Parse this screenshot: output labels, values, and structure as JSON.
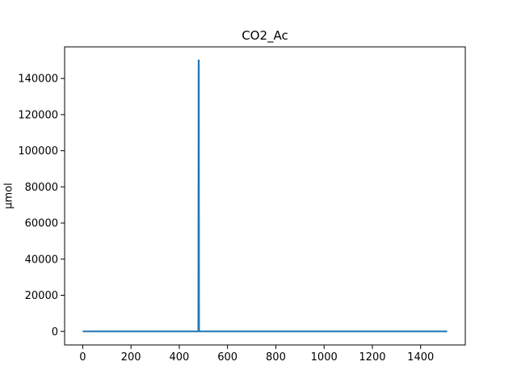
{
  "chart_data": {
    "type": "line",
    "title": "CO2_Ac",
    "xlabel": "",
    "ylabel": "µmol",
    "xlim": [
      -75,
      1585
    ],
    "ylim": [
      -7500,
      157500
    ],
    "x_ticks": [
      0,
      200,
      400,
      600,
      800,
      1000,
      1200,
      1400
    ],
    "y_ticks": [
      0,
      20000,
      40000,
      60000,
      80000,
      100000,
      120000,
      140000
    ],
    "grid": false,
    "legend": "none",
    "series": [
      {
        "color": "#1f77b4",
        "x": [
          0,
          479,
          480,
          481,
          482,
          1510
        ],
        "y": [
          0,
          0,
          150000,
          150000,
          0,
          0
        ]
      }
    ]
  }
}
